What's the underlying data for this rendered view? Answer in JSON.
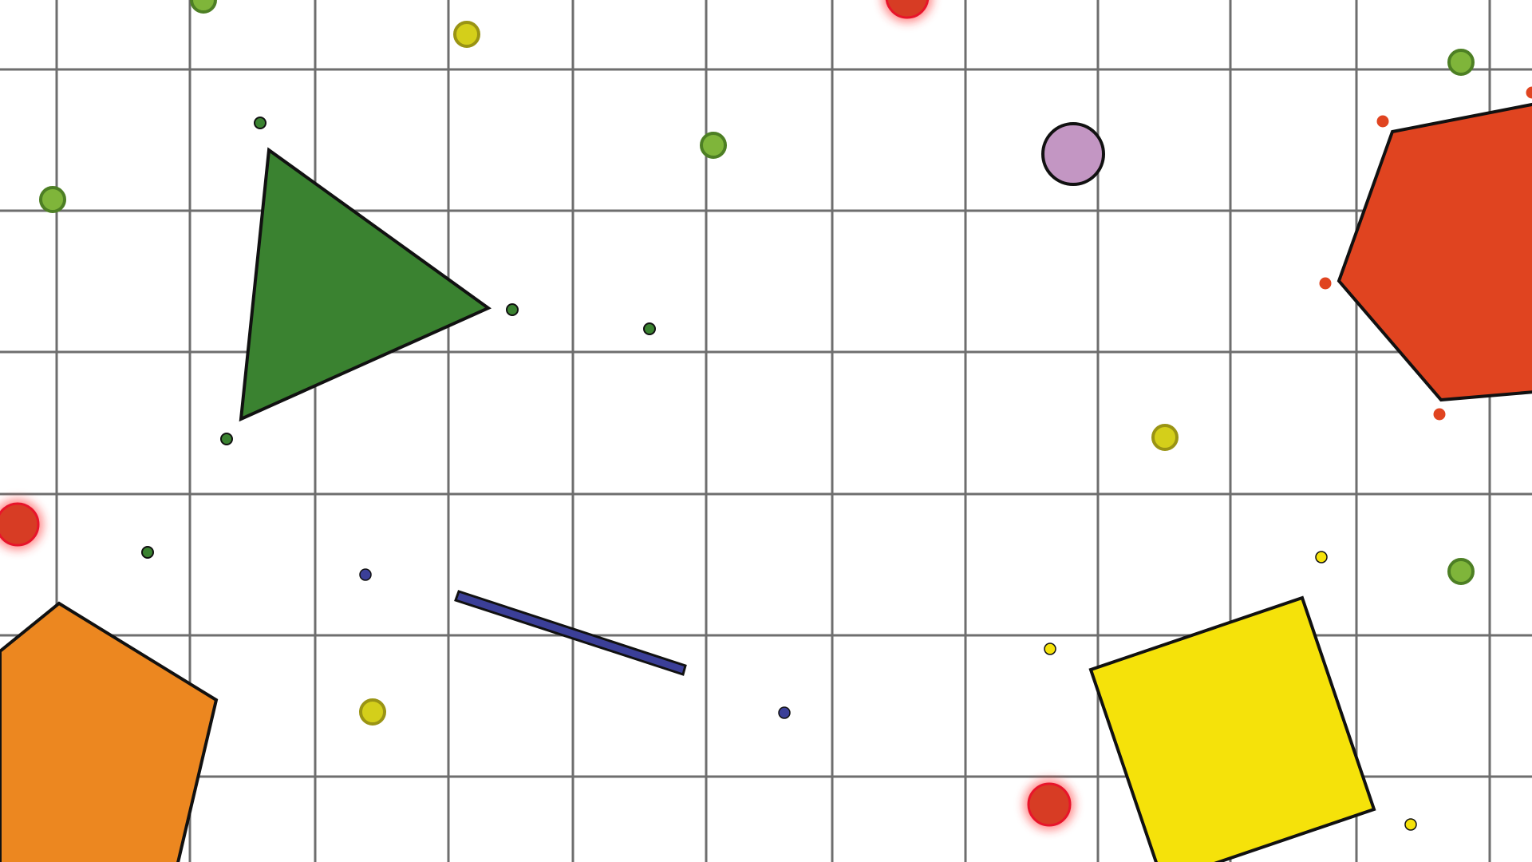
{
  "colors": {
    "background": "#ffffff",
    "grid_line": "#6e6e6e",
    "outline": "#111111",
    "green_triangle": "#3a8230",
    "red_hexagon": "#e04420",
    "orange_pentagon": "#ec8720",
    "yellow_square": "#f5e20a",
    "blue_bar": "#3b3f98",
    "pink_player": "#c396c3",
    "light_green_orb": "#7fb53a",
    "light_green_orb_ring": "#4d7f24",
    "dark_green_pellet": "#3a8230",
    "yellow_orb": "#d4cf1a",
    "yellow_orb_ring": "#9a9414",
    "red_orb": "#d73c24",
    "red_orb_glow": "#ff2a2a",
    "blue_pellet": "#3b3f98",
    "red_pellet": "#e04420",
    "yellow_pellet": "#f5e20a"
  },
  "entities": {
    "player": {
      "icon": "circle-player-icon",
      "interactive": true
    },
    "shapes": [
      {
        "name": "green-triangle-shape",
        "icon": "triangle-icon"
      },
      {
        "name": "red-hexagon-shape",
        "icon": "hexagon-icon"
      },
      {
        "name": "orange-pentagon-shape",
        "icon": "pentagon-icon"
      },
      {
        "name": "yellow-square-shape",
        "icon": "square-icon"
      },
      {
        "name": "blue-bar-shape",
        "icon": "bar-icon"
      }
    ]
  }
}
